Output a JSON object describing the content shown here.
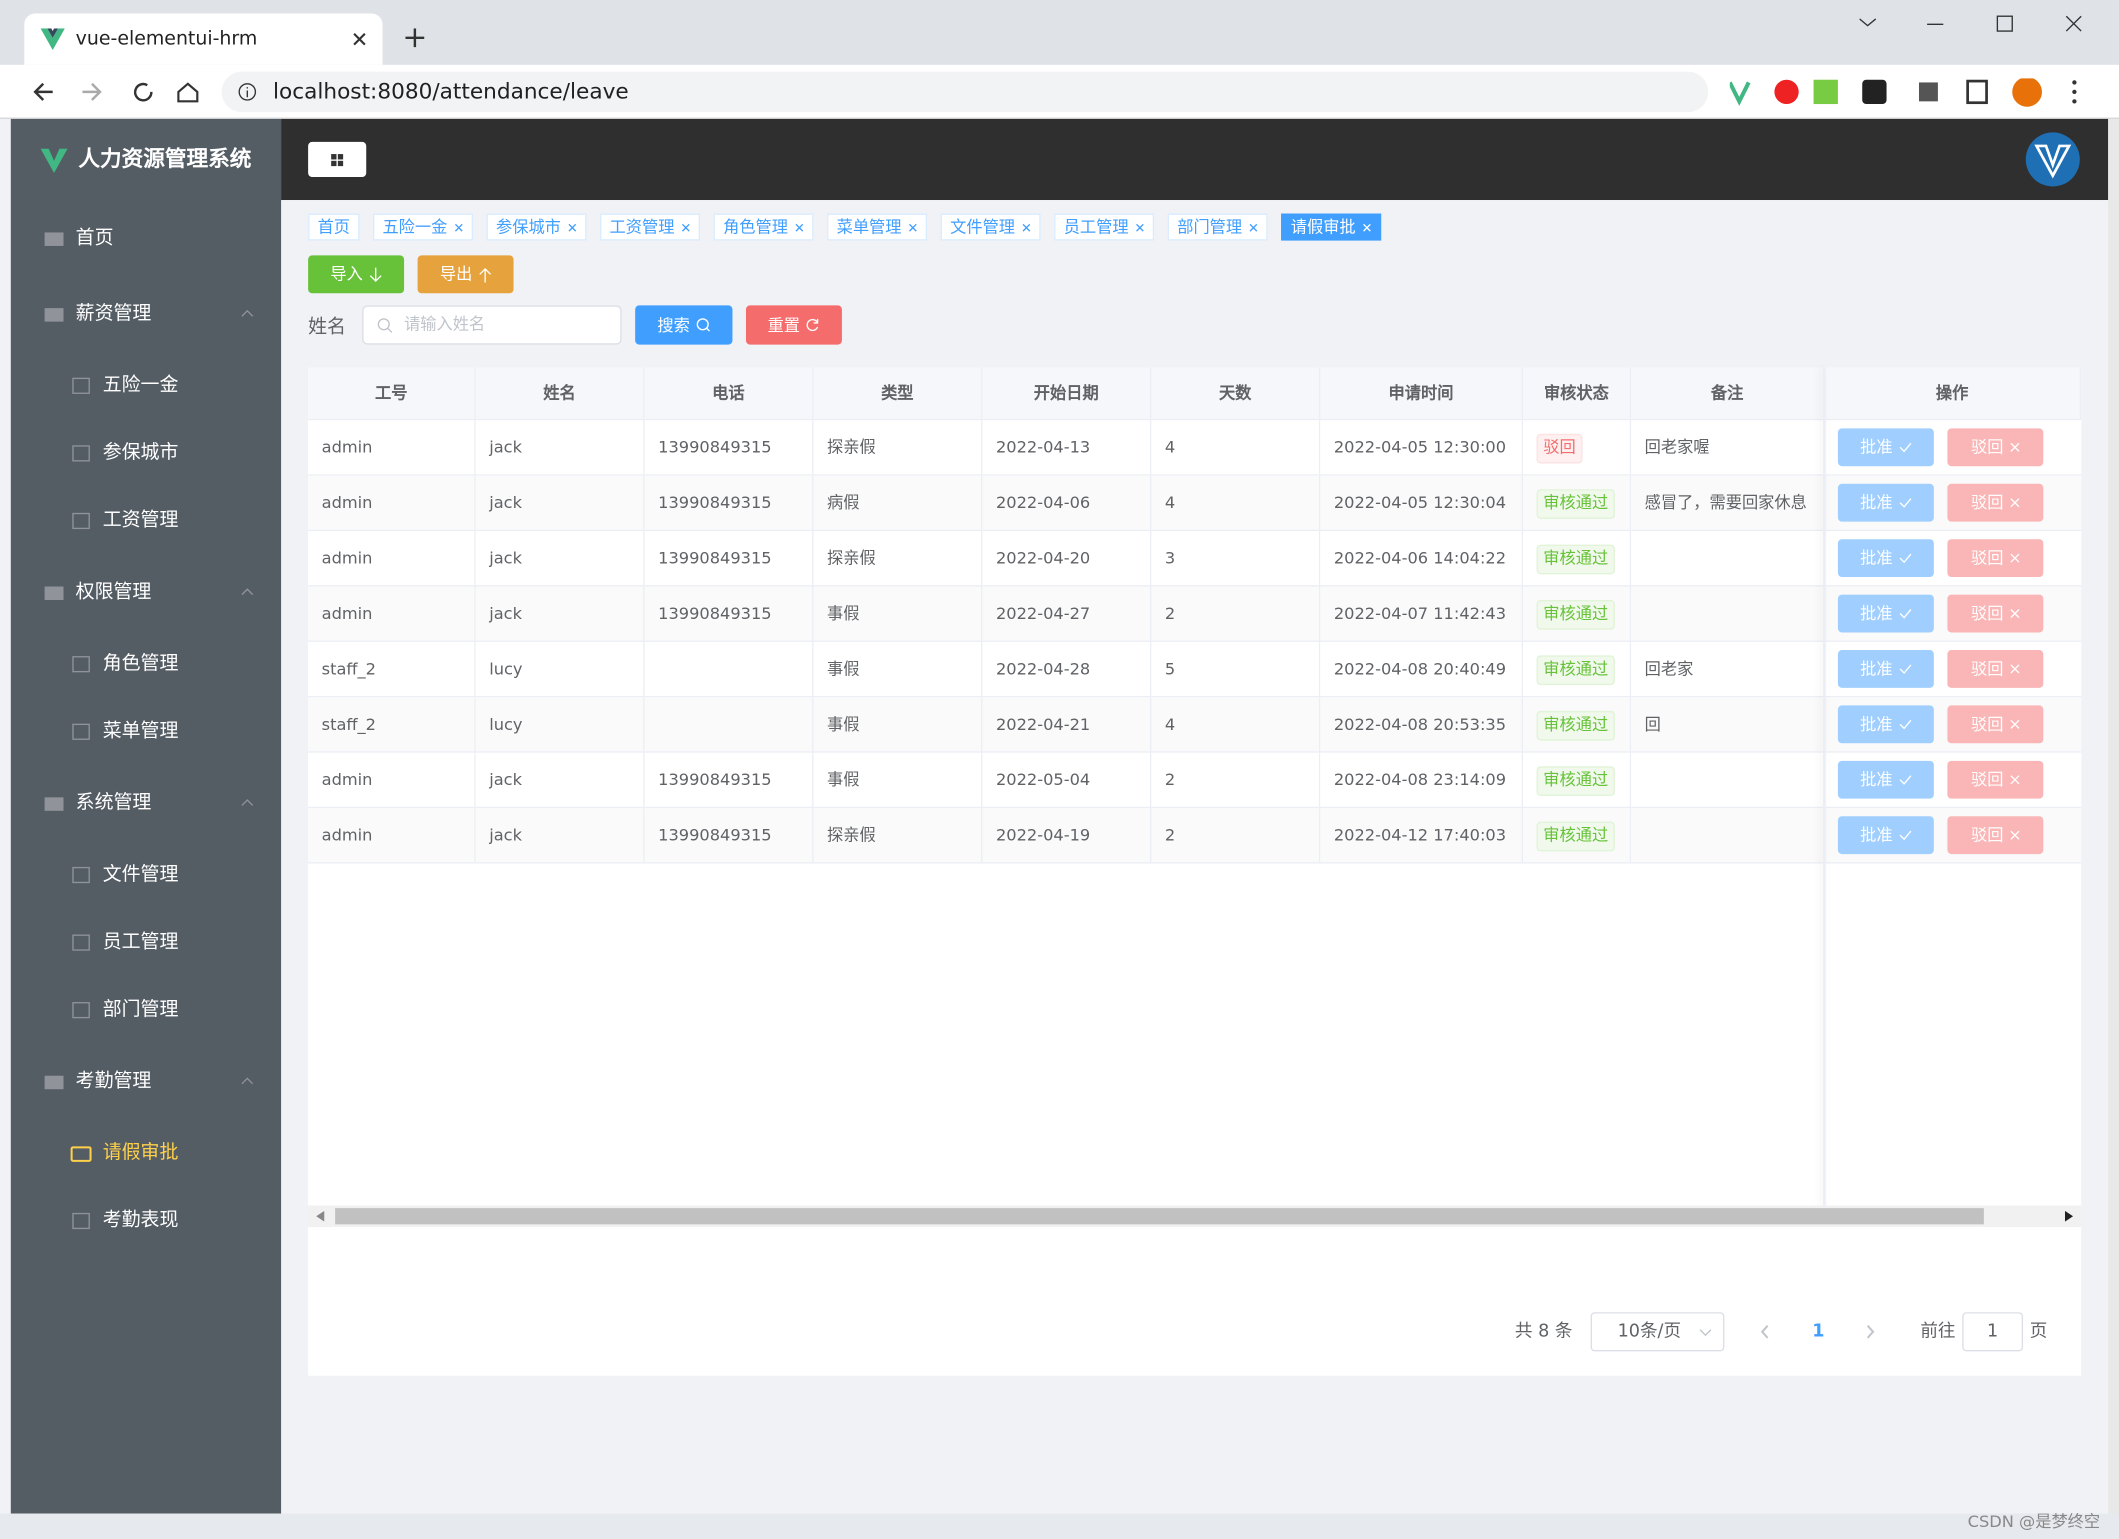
{
  "browser": {
    "tab_title": "vue-elementui-hrm",
    "url": "localhost:8080/attendance/leave"
  },
  "sidebar": {
    "title": "人力资源管理系统",
    "items": [
      {
        "label": "首页"
      },
      {
        "label": "薪资管理",
        "children": [
          "五险一金",
          "参保城市",
          "工资管理"
        ]
      },
      {
        "label": "权限管理",
        "children": [
          "角色管理",
          "菜单管理"
        ]
      },
      {
        "label": "系统管理",
        "children": [
          "文件管理",
          "员工管理",
          "部门管理"
        ]
      },
      {
        "label": "考勤管理",
        "children": [
          "请假审批",
          "考勤表现"
        ]
      }
    ]
  },
  "tags": [
    "首页",
    "五险一金",
    "参保城市",
    "工资管理",
    "角色管理",
    "菜单管理",
    "文件管理",
    "员工管理",
    "部门管理",
    "请假审批"
  ],
  "toolbar": {
    "import": "导入",
    "export": "导出",
    "search_label": "姓名",
    "search_placeholder": "请输入姓名",
    "search": "搜索",
    "reset": "重置"
  },
  "table": {
    "columns": [
      "工号",
      "姓名",
      "电话",
      "类型",
      "开始日期",
      "天数",
      "申请时间",
      "审核状态",
      "备注",
      "操作"
    ],
    "rows": [
      [
        "admin",
        "jack",
        "13990849315",
        "探亲假",
        "2022-04-13",
        "4",
        "2022-04-05 12:30:00",
        "驳回",
        "回老家喔"
      ],
      [
        "admin",
        "jack",
        "13990849315",
        "病假",
        "2022-04-06",
        "4",
        "2022-04-05 12:30:04",
        "审核通过",
        "感冒了，需要回家休息"
      ],
      [
        "admin",
        "jack",
        "13990849315",
        "探亲假",
        "2022-04-20",
        "3",
        "2022-04-06 14:04:22",
        "审核通过",
        null
      ],
      [
        "admin",
        "jack",
        "13990849315",
        "事假",
        "2022-04-27",
        "2",
        "2022-04-07 11:42:43",
        "审核通过",
        null
      ],
      [
        "staff_2",
        "lucy",
        null,
        "事假",
        "2022-04-28",
        "5",
        "2022-04-08 20:40:49",
        "审核通过",
        "回老家"
      ],
      [
        "staff_2",
        "lucy",
        null,
        "事假",
        "2022-04-21",
        "4",
        "2022-04-08 20:53:35",
        "审核通过",
        "回"
      ],
      [
        "admin",
        "jack",
        "13990849315",
        "事假",
        "2022-05-04",
        "2",
        "2022-04-08 23:14:09",
        "审核通过",
        null
      ],
      [
        "admin",
        "jack",
        "13990849315",
        "探亲假",
        "2022-04-19",
        "2",
        "2022-04-12 17:40:03",
        "审核通过",
        null
      ]
    ],
    "actions": [
      "批准",
      "驳回"
    ]
  },
  "pagination": {
    "total": "共 8 条",
    "page_size": "10条/页",
    "current": "1",
    "goto": "前往",
    "goto_value": "1",
    "page_unit": "页"
  },
  "watermark": "CSDN @是梦终空"
}
